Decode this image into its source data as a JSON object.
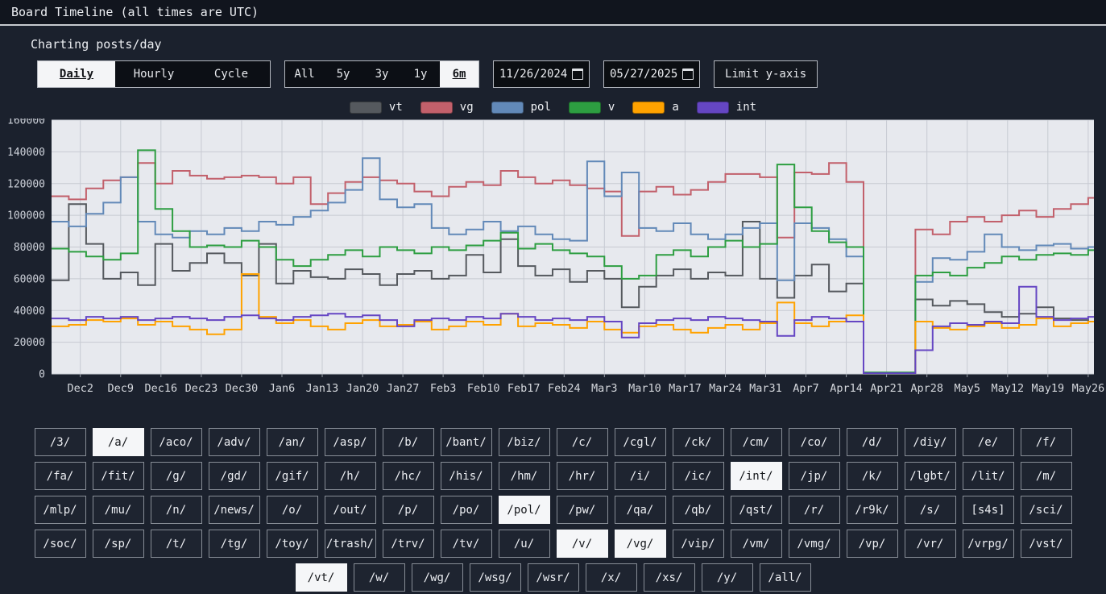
{
  "title_bar": {
    "title": "Board Timeline (all times are UTC)"
  },
  "heading": "Charting posts/day",
  "controls": {
    "mode_group": [
      {
        "label": "Daily",
        "selected": true
      },
      {
        "label": "Hourly",
        "selected": false
      },
      {
        "label": "Cycle",
        "selected": false
      }
    ],
    "range_group": [
      {
        "label": "All",
        "selected": false
      },
      {
        "label": "5y",
        "selected": false
      },
      {
        "label": "3y",
        "selected": false
      },
      {
        "label": "1y",
        "selected": false
      },
      {
        "label": "6m",
        "selected": true
      }
    ],
    "start_date": "11/26/2024",
    "end_date": "05/27/2025",
    "limit_y_axis_label": "Limit y-axis"
  },
  "legend": [
    {
      "label": "vt",
      "color": "#55595e"
    },
    {
      "label": "vg",
      "color": "#c2606b"
    },
    {
      "label": "pol",
      "color": "#6289b8"
    },
    {
      "label": "v",
      "color": "#2d9e41"
    },
    {
      "label": "a",
      "color": "#ffa200"
    },
    {
      "label": "int",
      "color": "#6546c3"
    }
  ],
  "chart_data": {
    "type": "line",
    "stepped": true,
    "title": "Charting posts/day",
    "xlabel": "",
    "ylabel": "posts/day",
    "ylim": [
      0,
      160000
    ],
    "grid": true,
    "legend_position": "top",
    "y_ticks": [
      0,
      20000,
      40000,
      60000,
      80000,
      100000,
      120000,
      140000,
      160000
    ],
    "x_day_span": 181,
    "x_start_date": "2024-11-27",
    "sample_interval_days": 3,
    "x_tick_labels": [
      [
        "Dec2",
        5
      ],
      [
        "Dec9",
        12
      ],
      [
        "Dec16",
        19
      ],
      [
        "Dec23",
        26
      ],
      [
        "Dec30",
        33
      ],
      [
        "Jan6",
        40
      ],
      [
        "Jan13",
        47
      ],
      [
        "Jan20",
        54
      ],
      [
        "Jan27",
        61
      ],
      [
        "Feb3",
        68
      ],
      [
        "Feb10",
        75
      ],
      [
        "Feb17",
        82
      ],
      [
        "Feb24",
        89
      ],
      [
        "Mar3",
        96
      ],
      [
        "Mar10",
        103
      ],
      [
        "Mar17",
        110
      ],
      [
        "Mar24",
        117
      ],
      [
        "Mar31",
        124
      ],
      [
        "Apr7",
        131
      ],
      [
        "Apr14",
        138
      ],
      [
        "Apr21",
        145
      ],
      [
        "Apr28",
        152
      ],
      [
        "May5",
        159
      ],
      [
        "May12",
        166
      ],
      [
        "May19",
        173
      ],
      [
        "May26",
        180
      ]
    ],
    "series": [
      {
        "name": "vt",
        "color": "#55595e",
        "values": [
          59000,
          107000,
          82000,
          60000,
          64000,
          56000,
          82000,
          65000,
          70000,
          76000,
          70000,
          62000,
          82000,
          57000,
          65000,
          61000,
          60000,
          66000,
          63000,
          56000,
          63000,
          65000,
          60000,
          62000,
          75000,
          64000,
          85000,
          68000,
          62000,
          66000,
          58000,
          65000,
          60000,
          42000,
          55000,
          62000,
          66000,
          60000,
          64000,
          62000,
          96000,
          60000,
          48000,
          62000,
          69000,
          52000,
          57000,
          1000,
          1000,
          1000,
          47000,
          43000,
          46000,
          44000,
          39000,
          36000,
          38000,
          42000,
          35000,
          34000,
          33000
        ]
      },
      {
        "name": "vg",
        "color": "#c2606b",
        "values": [
          112000,
          110000,
          117000,
          122000,
          124000,
          133000,
          120000,
          128000,
          125000,
          123000,
          124000,
          125000,
          124000,
          120000,
          124000,
          107000,
          114000,
          121000,
          124000,
          122000,
          120000,
          115000,
          112000,
          118000,
          121000,
          119000,
          128000,
          124000,
          120000,
          122000,
          119000,
          117000,
          115000,
          87000,
          115000,
          118000,
          113000,
          116000,
          121000,
          126000,
          126000,
          124000,
          86000,
          127000,
          126000,
          133000,
          121000,
          1000,
          1000,
          1000,
          91000,
          88000,
          96000,
          99000,
          96000,
          100000,
          103000,
          99000,
          104000,
          107000,
          111000
        ]
      },
      {
        "name": "pol",
        "color": "#6289b8",
        "values": [
          96000,
          93000,
          101000,
          108000,
          124000,
          96000,
          88000,
          86000,
          90000,
          88000,
          92000,
          90000,
          96000,
          94000,
          99000,
          103000,
          108000,
          116000,
          136000,
          110000,
          105000,
          107000,
          92000,
          88000,
          91000,
          96000,
          90000,
          93000,
          88000,
          85000,
          84000,
          134000,
          112000,
          127000,
          92000,
          90000,
          95000,
          88000,
          85000,
          88000,
          92000,
          95000,
          59000,
          95000,
          92000,
          85000,
          74000,
          1000,
          1000,
          1000,
          58000,
          73000,
          72000,
          77000,
          88000,
          80000,
          78000,
          81000,
          82000,
          79000,
          80000
        ]
      },
      {
        "name": "v",
        "color": "#2d9e41",
        "values": [
          79000,
          77000,
          74000,
          72000,
          76000,
          141000,
          104000,
          90000,
          80000,
          81000,
          80000,
          84000,
          80000,
          72000,
          68000,
          72000,
          75000,
          78000,
          74000,
          80000,
          78000,
          76000,
          80000,
          78000,
          81000,
          84000,
          89000,
          79000,
          82000,
          78000,
          76000,
          74000,
          68000,
          60000,
          62000,
          75000,
          78000,
          74000,
          80000,
          84000,
          80000,
          82000,
          132000,
          105000,
          90000,
          83000,
          80000,
          1000,
          1000,
          1000,
          62000,
          64000,
          62000,
          67000,
          70000,
          74000,
          72000,
          75000,
          76000,
          75000,
          78000
        ]
      },
      {
        "name": "a",
        "color": "#ffa200",
        "values": [
          30000,
          31000,
          34000,
          33000,
          35000,
          31000,
          33000,
          30000,
          28000,
          25000,
          28000,
          63000,
          36000,
          32000,
          34000,
          30000,
          28000,
          32000,
          34000,
          30000,
          31000,
          33000,
          28000,
          30000,
          33000,
          31000,
          38000,
          30000,
          32000,
          31000,
          29000,
          33000,
          28000,
          26000,
          30000,
          31000,
          28000,
          26000,
          29000,
          31000,
          28000,
          32000,
          45000,
          32000,
          30000,
          33000,
          37000,
          500,
          500,
          500,
          33000,
          29000,
          28000,
          30000,
          32000,
          29000,
          31000,
          35000,
          30000,
          32000,
          33000
        ]
      },
      {
        "name": "int",
        "color": "#6546c3",
        "values": [
          35000,
          34000,
          36000,
          35000,
          36000,
          34000,
          35000,
          36000,
          35000,
          34000,
          36000,
          37000,
          35000,
          34000,
          36000,
          37000,
          38000,
          36000,
          37000,
          34000,
          30000,
          34000,
          35000,
          34000,
          36000,
          35000,
          38000,
          36000,
          34000,
          35000,
          34000,
          36000,
          33000,
          23000,
          32000,
          34000,
          35000,
          34000,
          36000,
          35000,
          34000,
          33000,
          24000,
          34000,
          36000,
          35000,
          33000,
          500,
          500,
          500,
          15000,
          30000,
          32000,
          31000,
          33000,
          32000,
          55000,
          36000,
          34000,
          35000,
          36000
        ]
      }
    ]
  },
  "boards": {
    "selected": [
      "/a/",
      "/int/",
      "/pol/",
      "/v/",
      "/vg/",
      "/vt/"
    ],
    "rows": [
      [
        "/3/",
        "/a/",
        "/aco/",
        "/adv/",
        "/an/",
        "/asp/",
        "/b/",
        "/bant/",
        "/biz/",
        "/c/",
        "/cgl/",
        "/ck/",
        "/cm/",
        "/co/",
        "/d/",
        "/diy/",
        "/e/",
        "/f/"
      ],
      [
        "/fa/",
        "/fit/",
        "/g/",
        "/gd/",
        "/gif/",
        "/h/",
        "/hc/",
        "/his/",
        "/hm/",
        "/hr/",
        "/i/",
        "/ic/",
        "/int/",
        "/jp/",
        "/k/",
        "/lgbt/",
        "/lit/",
        "/m/"
      ],
      [
        "/mlp/",
        "/mu/",
        "/n/",
        "/news/",
        "/o/",
        "/out/",
        "/p/",
        "/po/",
        "/pol/",
        "/pw/",
        "/qa/",
        "/qb/",
        "/qst/",
        "/r/",
        "/r9k/",
        "/s/",
        "[s4s]",
        "/sci/"
      ],
      [
        "/soc/",
        "/sp/",
        "/t/",
        "/tg/",
        "/toy/",
        "/trash/",
        "/trv/",
        "/tv/",
        "/u/",
        "/v/",
        "/vg/",
        "/vip/",
        "/vm/",
        "/vmg/",
        "/vp/",
        "/vr/",
        "/vrpg/",
        "/vst/"
      ],
      [
        "/vt/",
        "/w/",
        "/wg/",
        "/wsg/",
        "/wsr/",
        "/x/",
        "/xs/",
        "/y/",
        "/all/"
      ]
    ]
  }
}
